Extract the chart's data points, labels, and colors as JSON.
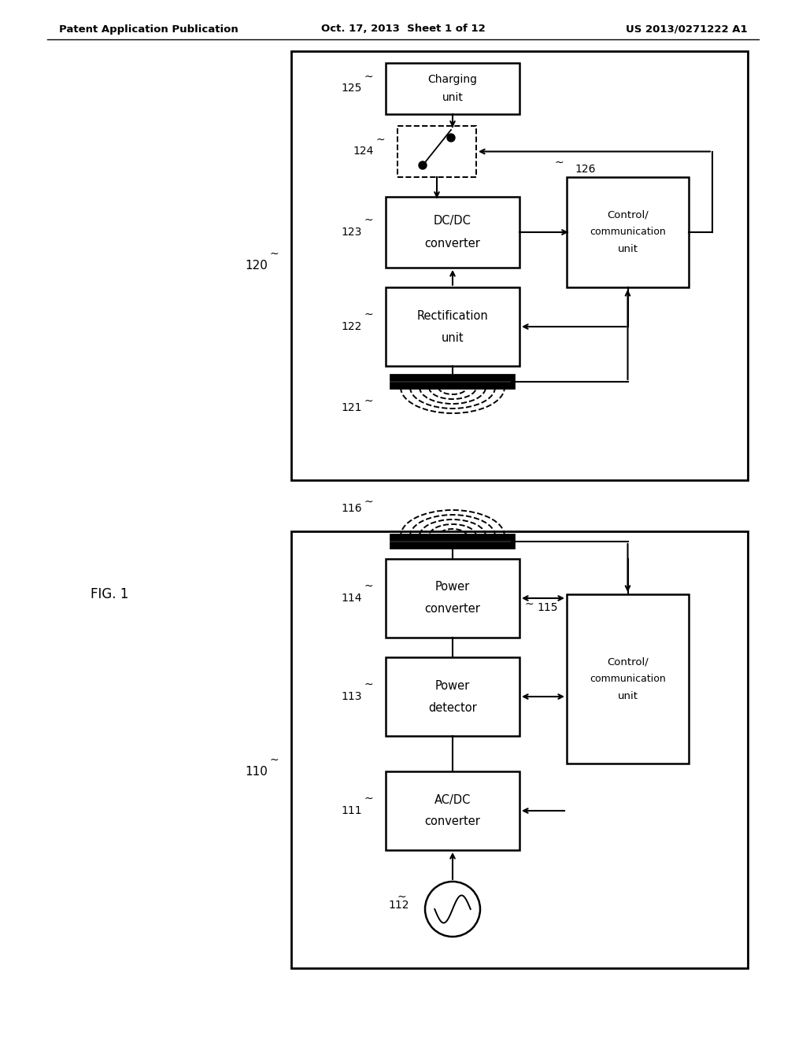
{
  "bg_color": "#ffffff",
  "header_left": "Patent Application Publication",
  "header_mid": "Oct. 17, 2013  Sheet 1 of 12",
  "header_right": "US 2013/0271222 A1"
}
